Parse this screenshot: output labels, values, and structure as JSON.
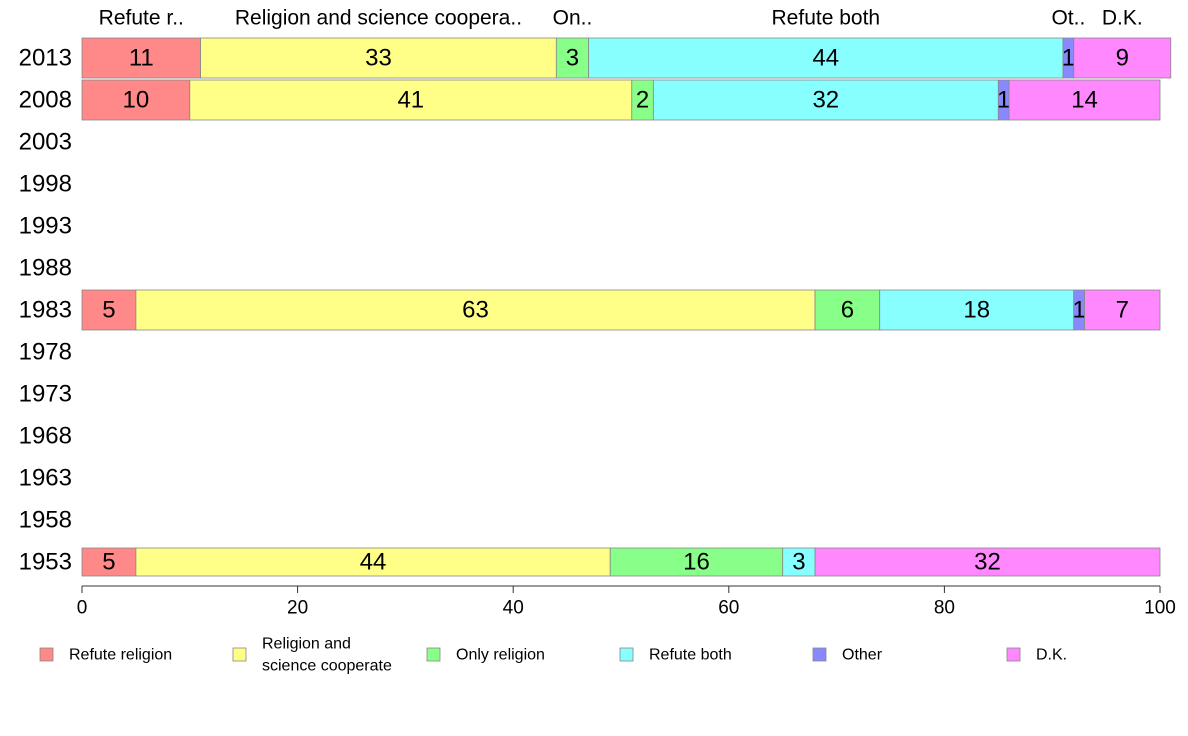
{
  "chart_data": {
    "type": "bar",
    "orientation": "horizontal",
    "stacked": true,
    "categories": [
      "2013",
      "2008",
      "2003",
      "1998",
      "1993",
      "1988",
      "1983",
      "1978",
      "1973",
      "1968",
      "1963",
      "1958",
      "1953"
    ],
    "series": [
      {
        "name": "Refute religion",
        "color": "#ff8888",
        "values": [
          11,
          10,
          null,
          null,
          null,
          null,
          5,
          null,
          null,
          null,
          null,
          null,
          5
        ]
      },
      {
        "name": "Religion and science cooperate",
        "color": "#ffff88",
        "values": [
          33,
          41,
          null,
          null,
          null,
          null,
          63,
          null,
          null,
          null,
          null,
          null,
          44
        ]
      },
      {
        "name": "Only religion",
        "color": "#88ff88",
        "values": [
          3,
          2,
          null,
          null,
          null,
          null,
          6,
          null,
          null,
          null,
          null,
          null,
          16
        ]
      },
      {
        "name": "Refute both",
        "color": "#88ffff",
        "values": [
          44,
          32,
          null,
          null,
          null,
          null,
          18,
          null,
          null,
          null,
          null,
          null,
          3
        ]
      },
      {
        "name": "Other",
        "color": "#8888ff",
        "values": [
          1,
          1,
          null,
          null,
          null,
          null,
          1,
          null,
          null,
          null,
          null,
          null,
          0
        ]
      },
      {
        "name": "D.K.",
        "color": "#ff88ff",
        "values": [
          9,
          14,
          null,
          null,
          null,
          null,
          7,
          null,
          null,
          null,
          null,
          null,
          32
        ]
      }
    ],
    "top_labels": [
      "Refute r..",
      "Religion and science coopera..",
      "On..",
      "Refute both",
      "Ot..",
      "D.K."
    ],
    "legend_labels": [
      [
        "Refute religion"
      ],
      [
        "Religion and",
        "science cooperate"
      ],
      [
        "Only religion"
      ],
      [
        "Refute both"
      ],
      [
        "Other"
      ],
      [
        "D.K."
      ]
    ],
    "xlim": [
      0,
      100
    ],
    "xticks": [
      0,
      20,
      40,
      60,
      80,
      100
    ],
    "grid": false,
    "legend_position": "bottom"
  }
}
